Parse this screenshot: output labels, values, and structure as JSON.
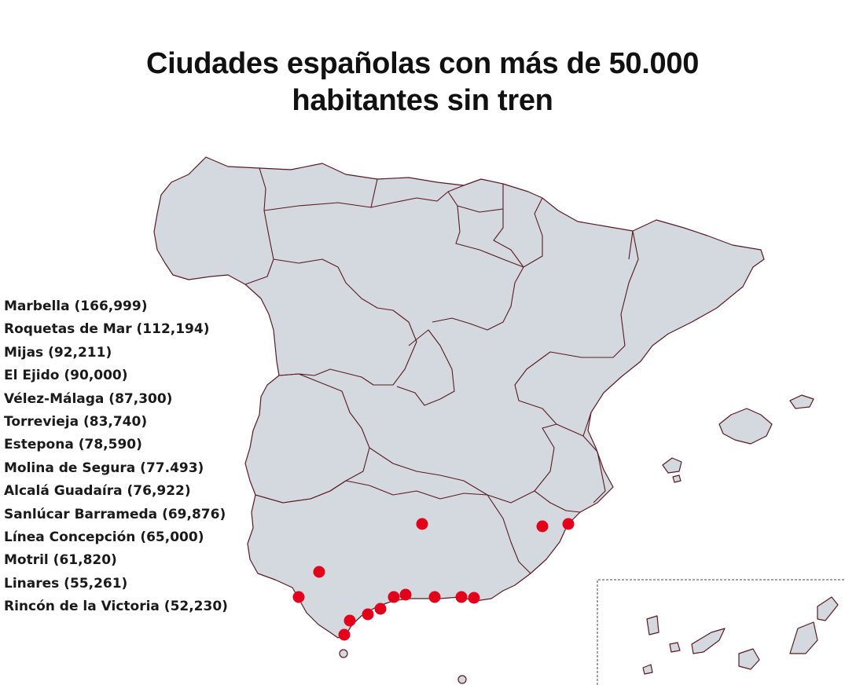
{
  "title": {
    "line1": "Ciudades españolas con más de 50.000",
    "line2": "habitantes sin tren"
  },
  "cities": [
    {
      "name": "Marbella",
      "population": "166,999",
      "label": "Marbella (166,999)"
    },
    {
      "name": "Roquetas de Mar",
      "population": "112,194",
      "label": "Roquetas de Mar (112,194)"
    },
    {
      "name": "Mijas",
      "population": "92,211",
      "label": "Mijas (92,211)"
    },
    {
      "name": "El Ejido",
      "population": "90,000",
      "label": "El Ejido (90,000)"
    },
    {
      "name": "Vélez-Málaga",
      "population": "87,300",
      "label": "Vélez-Málaga (87,300)"
    },
    {
      "name": "Torrevieja",
      "population": "83,740",
      "label": "Torrevieja (83,740)"
    },
    {
      "name": "Estepona",
      "population": "78,590",
      "label": "Estepona (78,590)"
    },
    {
      "name": "Molina de Segura",
      "population": "77.493",
      "label": "Molina de Segura (77.493)"
    },
    {
      "name": "Alcalá Guadaíra",
      "population": "76,922",
      "label": "Alcalá Guadaíra (76,922)"
    },
    {
      "name": "Sanlúcar Barrameda",
      "population": "69,876",
      "label": "Sanlúcar Barrameda (69,876)"
    },
    {
      "name": "Línea Concepción",
      "population": "65,000",
      "label": "Línea Concepción (65,000)"
    },
    {
      "name": "Motril",
      "population": "61,820",
      "label": "Motril (61,820)"
    },
    {
      "name": "Linares",
      "population": "55,261",
      "label": "Linares (55,261)"
    },
    {
      "name": "Rincón de la Victoria",
      "population": "52,230",
      "label": "Rincón de la Victoria (52,230)"
    }
  ],
  "colors": {
    "land": "#d3d9de",
    "border": "#5a1a22",
    "marker": "#e3001b"
  }
}
